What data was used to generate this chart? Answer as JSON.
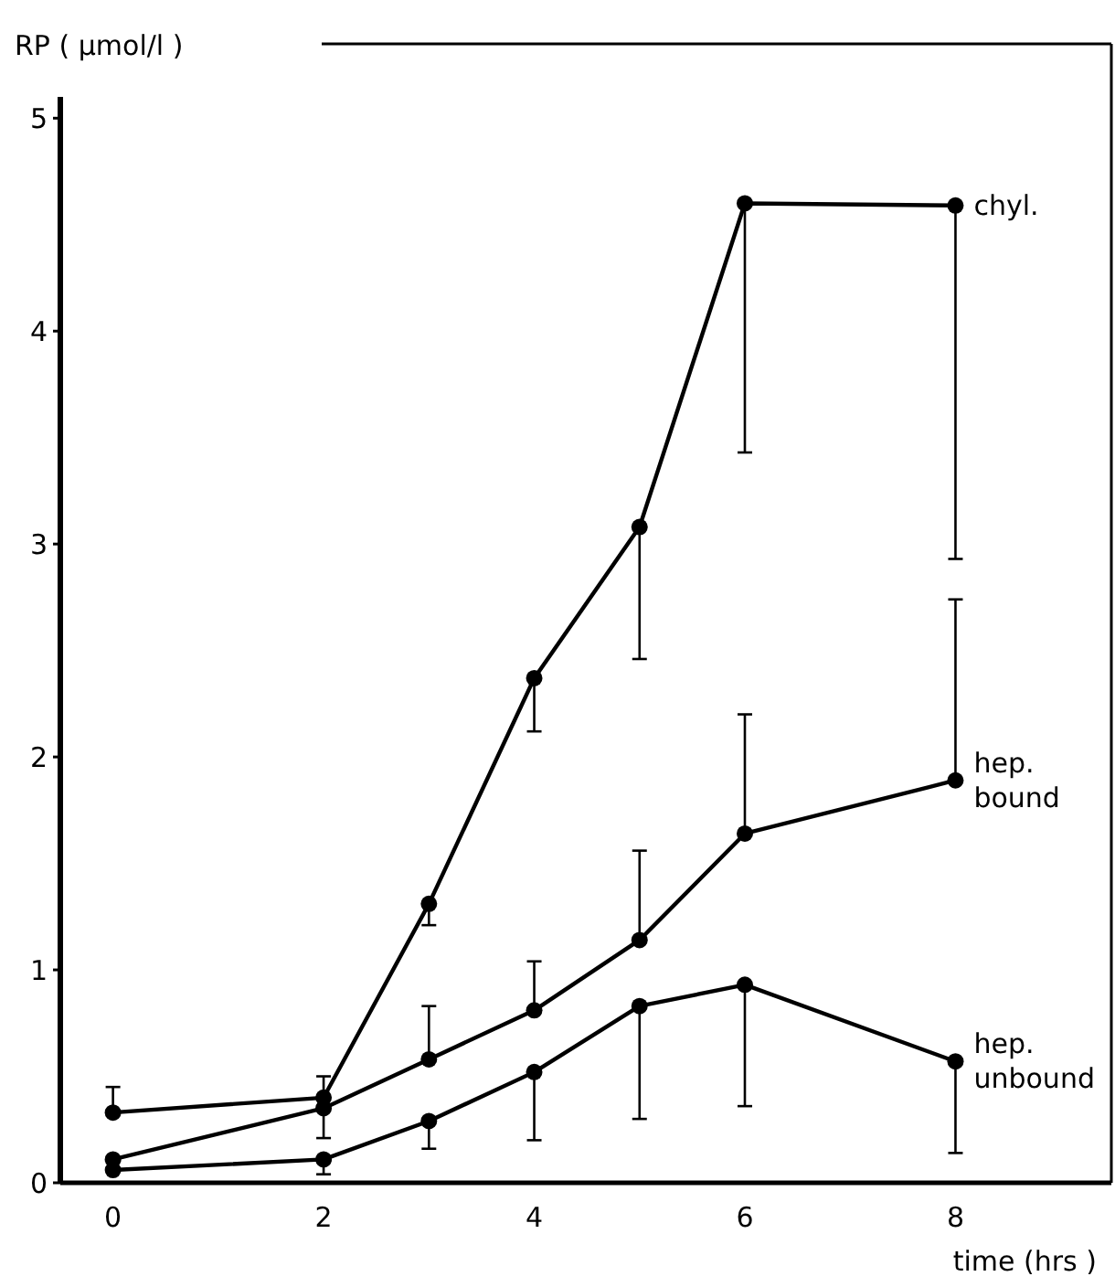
{
  "chart_data": {
    "type": "line",
    "xlabel": "time (hrs )",
    "ylabel": "RP ( µmol/l )",
    "x": [
      0,
      2,
      3,
      4,
      5,
      6,
      8
    ],
    "xlim": [
      -0.5,
      9.48
    ],
    "xticks": [
      0,
      2,
      4,
      6,
      8
    ],
    "ylim": [
      0,
      5.1
    ],
    "yticks": [
      0,
      1,
      2,
      3,
      4,
      5
    ],
    "grid": false,
    "marker": "circle",
    "line_style": "solid",
    "series": [
      {
        "name": "chyl.",
        "color": "#000000",
        "values": [
          0.33,
          0.4,
          1.31,
          2.37,
          3.08,
          4.6,
          4.59
        ],
        "errors": [
          [
            0.33,
            0.45
          ],
          [
            0.4,
            0.5
          ],
          [
            1.21,
            1.31
          ],
          [
            2.12,
            2.37
          ],
          [
            2.46,
            3.08
          ],
          [
            3.43,
            4.6
          ],
          [
            2.93,
            4.59
          ]
        ]
      },
      {
        "name": "hep. bound",
        "color": "#000000",
        "values": [
          0.11,
          0.35,
          0.58,
          0.81,
          1.14,
          1.64,
          1.89
        ],
        "errors": [
          null,
          [
            0.21,
            0.35
          ],
          [
            0.58,
            0.83
          ],
          [
            0.81,
            1.04
          ],
          [
            1.14,
            1.56
          ],
          [
            1.64,
            2.2
          ],
          [
            1.89,
            2.74
          ]
        ]
      },
      {
        "name": "hep. unbound",
        "color": "#000000",
        "values": [
          0.06,
          0.11,
          0.29,
          0.52,
          0.83,
          0.93,
          0.57
        ],
        "errors": [
          null,
          [
            0.04,
            0.11
          ],
          [
            0.16,
            0.29
          ],
          [
            0.2,
            0.52
          ],
          [
            0.3,
            0.83
          ],
          [
            0.36,
            0.93
          ],
          [
            0.14,
            0.57
          ]
        ]
      }
    ]
  }
}
